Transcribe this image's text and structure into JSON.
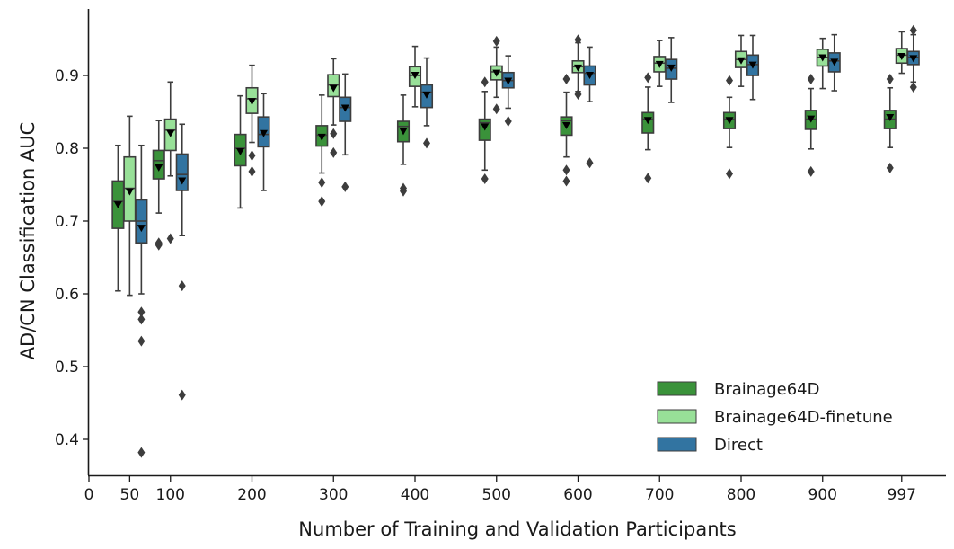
{
  "chart_data": {
    "type": "box",
    "title": "",
    "xlabel": "Number of Training and Validation Participants",
    "ylabel": "AD/CN Classification AUC",
    "x_tick_values": [
      0,
      50,
      100,
      200,
      300,
      400,
      500,
      600,
      700,
      800,
      900,
      997
    ],
    "x_tick_labels": [
      "0",
      "50",
      "100",
      "200",
      "300",
      "400",
      "500",
      "600",
      "700",
      "800",
      "900",
      "997"
    ],
    "xlim": [
      0,
      1050
    ],
    "y_tick_values": [
      0.4,
      0.5,
      0.6,
      0.7,
      0.8,
      0.9
    ],
    "y_tick_labels": [
      "0.4",
      "0.5",
      "0.6",
      "0.7",
      "0.8",
      "0.9"
    ],
    "ylim": [
      0.35,
      0.99
    ],
    "grid": false,
    "legend_position": "bottom-right",
    "mean_marker": "downward triangle",
    "categories": [
      50,
      100,
      200,
      300,
      400,
      500,
      600,
      700,
      800,
      900,
      997
    ],
    "series": [
      {
        "name": "Brainage64D",
        "color": "#3a923a",
        "boxes": [
          {
            "x": 50,
            "whislo": 0.604,
            "q1": 0.69,
            "med": 0.727,
            "q3": 0.755,
            "whishi": 0.804,
            "mean": 0.722,
            "fliers": []
          },
          {
            "x": 100,
            "whislo": 0.711,
            "q1": 0.758,
            "med": 0.783,
            "q3": 0.797,
            "whishi": 0.838,
            "mean": 0.773,
            "fliers": [
              0.667,
              0.67
            ]
          },
          {
            "x": 200,
            "whislo": 0.718,
            "q1": 0.776,
            "med": 0.8,
            "q3": 0.819,
            "whishi": 0.872,
            "mean": 0.795,
            "fliers": []
          },
          {
            "x": 300,
            "whislo": 0.766,
            "q1": 0.803,
            "med": 0.818,
            "q3": 0.831,
            "whishi": 0.873,
            "mean": 0.815,
            "fliers": [
              0.753,
              0.727
            ]
          },
          {
            "x": 400,
            "whislo": 0.778,
            "q1": 0.809,
            "med": 0.83,
            "q3": 0.837,
            "whishi": 0.873,
            "mean": 0.823,
            "fliers": [
              0.745,
              0.741
            ]
          },
          {
            "x": 500,
            "whislo": 0.77,
            "q1": 0.811,
            "med": 0.835,
            "q3": 0.84,
            "whishi": 0.878,
            "mean": 0.829,
            "fliers": [
              0.891,
              0.758
            ]
          },
          {
            "x": 600,
            "whislo": 0.788,
            "q1": 0.818,
            "med": 0.838,
            "q3": 0.843,
            "whishi": 0.877,
            "mean": 0.831,
            "fliers": [
              0.895,
              0.77,
              0.755
            ]
          },
          {
            "x": 700,
            "whislo": 0.798,
            "q1": 0.821,
            "med": 0.84,
            "q3": 0.849,
            "whishi": 0.884,
            "mean": 0.838,
            "fliers": [
              0.897,
              0.759
            ]
          },
          {
            "x": 800,
            "whislo": 0.801,
            "q1": 0.827,
            "med": 0.84,
            "q3": 0.849,
            "whishi": 0.87,
            "mean": 0.838,
            "fliers": [
              0.893,
              0.765
            ]
          },
          {
            "x": 900,
            "whislo": 0.799,
            "q1": 0.826,
            "med": 0.84,
            "q3": 0.852,
            "whishi": 0.882,
            "mean": 0.84,
            "fliers": [
              0.895,
              0.768
            ]
          },
          {
            "x": 997,
            "whislo": 0.801,
            "q1": 0.827,
            "med": 0.84,
            "q3": 0.852,
            "whishi": 0.883,
            "mean": 0.842,
            "fliers": [
              0.895,
              0.773
            ]
          }
        ]
      },
      {
        "name": "Brainage64D-finetune",
        "color": "#98e098",
        "boxes": [
          {
            "x": 50,
            "whislo": 0.598,
            "q1": 0.7,
            "med": 0.745,
            "q3": 0.788,
            "whishi": 0.844,
            "mean": 0.74,
            "fliers": []
          },
          {
            "x": 100,
            "whislo": 0.762,
            "q1": 0.797,
            "med": 0.825,
            "q3": 0.84,
            "whishi": 0.891,
            "mean": 0.82,
            "fliers": [
              0.676
            ]
          },
          {
            "x": 200,
            "whislo": 0.808,
            "q1": 0.848,
            "med": 0.868,
            "q3": 0.883,
            "whishi": 0.914,
            "mean": 0.864,
            "fliers": [
              0.79,
              0.768
            ]
          },
          {
            "x": 300,
            "whislo": 0.832,
            "q1": 0.871,
            "med": 0.887,
            "q3": 0.901,
            "whishi": 0.923,
            "mean": 0.882,
            "fliers": [
              0.82,
              0.794
            ]
          },
          {
            "x": 400,
            "whislo": 0.857,
            "q1": 0.885,
            "med": 0.9,
            "q3": 0.912,
            "whishi": 0.94,
            "mean": 0.9,
            "fliers": []
          },
          {
            "x": 500,
            "whislo": 0.87,
            "q1": 0.894,
            "med": 0.905,
            "q3": 0.913,
            "whishi": 0.939,
            "mean": 0.903,
            "fliers": [
              0.947,
              0.854
            ]
          },
          {
            "x": 600,
            "whislo": 0.878,
            "q1": 0.904,
            "med": 0.912,
            "q3": 0.92,
            "whishi": 0.945,
            "mean": 0.91,
            "fliers": [
              0.949,
              0.874
            ]
          },
          {
            "x": 700,
            "whislo": 0.885,
            "q1": 0.905,
            "med": 0.917,
            "q3": 0.926,
            "whishi": 0.948,
            "mean": 0.915,
            "fliers": []
          },
          {
            "x": 800,
            "whislo": 0.885,
            "q1": 0.911,
            "med": 0.922,
            "q3": 0.933,
            "whishi": 0.955,
            "mean": 0.92,
            "fliers": []
          },
          {
            "x": 900,
            "whislo": 0.882,
            "q1": 0.913,
            "med": 0.925,
            "q3": 0.936,
            "whishi": 0.951,
            "mean": 0.924,
            "fliers": []
          },
          {
            "x": 997,
            "whislo": 0.903,
            "q1": 0.917,
            "med": 0.928,
            "q3": 0.937,
            "whishi": 0.96,
            "mean": 0.926,
            "fliers": []
          }
        ]
      },
      {
        "name": "Direct",
        "color": "#3274a1",
        "boxes": [
          {
            "x": 50,
            "whislo": 0.6,
            "q1": 0.67,
            "med": 0.7,
            "q3": 0.729,
            "whishi": 0.804,
            "mean": 0.69,
            "fliers": [
              0.575,
              0.565,
              0.535,
              0.382
            ]
          },
          {
            "x": 100,
            "whislo": 0.68,
            "q1": 0.742,
            "med": 0.764,
            "q3": 0.792,
            "whishi": 0.833,
            "mean": 0.755,
            "fliers": [
              0.611,
              0.461
            ]
          },
          {
            "x": 200,
            "whislo": 0.742,
            "q1": 0.802,
            "med": 0.819,
            "q3": 0.843,
            "whishi": 0.875,
            "mean": 0.82,
            "fliers": []
          },
          {
            "x": 300,
            "whislo": 0.791,
            "q1": 0.837,
            "med": 0.856,
            "q3": 0.87,
            "whishi": 0.902,
            "mean": 0.855,
            "fliers": [
              0.747
            ]
          },
          {
            "x": 400,
            "whislo": 0.831,
            "q1": 0.856,
            "med": 0.877,
            "q3": 0.887,
            "whishi": 0.924,
            "mean": 0.873,
            "fliers": [
              0.807
            ]
          },
          {
            "x": 500,
            "whislo": 0.855,
            "q1": 0.883,
            "med": 0.893,
            "q3": 0.904,
            "whishi": 0.927,
            "mean": 0.892,
            "fliers": [
              0.837
            ]
          },
          {
            "x": 600,
            "whislo": 0.864,
            "q1": 0.887,
            "med": 0.903,
            "q3": 0.913,
            "whishi": 0.939,
            "mean": 0.9,
            "fliers": [
              0.78
            ]
          },
          {
            "x": 700,
            "whislo": 0.863,
            "q1": 0.895,
            "med": 0.91,
            "q3": 0.922,
            "whishi": 0.952,
            "mean": 0.91,
            "fliers": []
          },
          {
            "x": 800,
            "whislo": 0.867,
            "q1": 0.9,
            "med": 0.915,
            "q3": 0.928,
            "whishi": 0.955,
            "mean": 0.914,
            "fliers": []
          },
          {
            "x": 900,
            "whislo": 0.879,
            "q1": 0.905,
            "med": 0.92,
            "q3": 0.931,
            "whishi": 0.956,
            "mean": 0.918,
            "fliers": []
          },
          {
            "x": 997,
            "whislo": 0.891,
            "q1": 0.915,
            "med": 0.925,
            "q3": 0.933,
            "whishi": 0.956,
            "mean": 0.923,
            "fliers": [
              0.962,
              0.884
            ]
          }
        ]
      }
    ]
  }
}
